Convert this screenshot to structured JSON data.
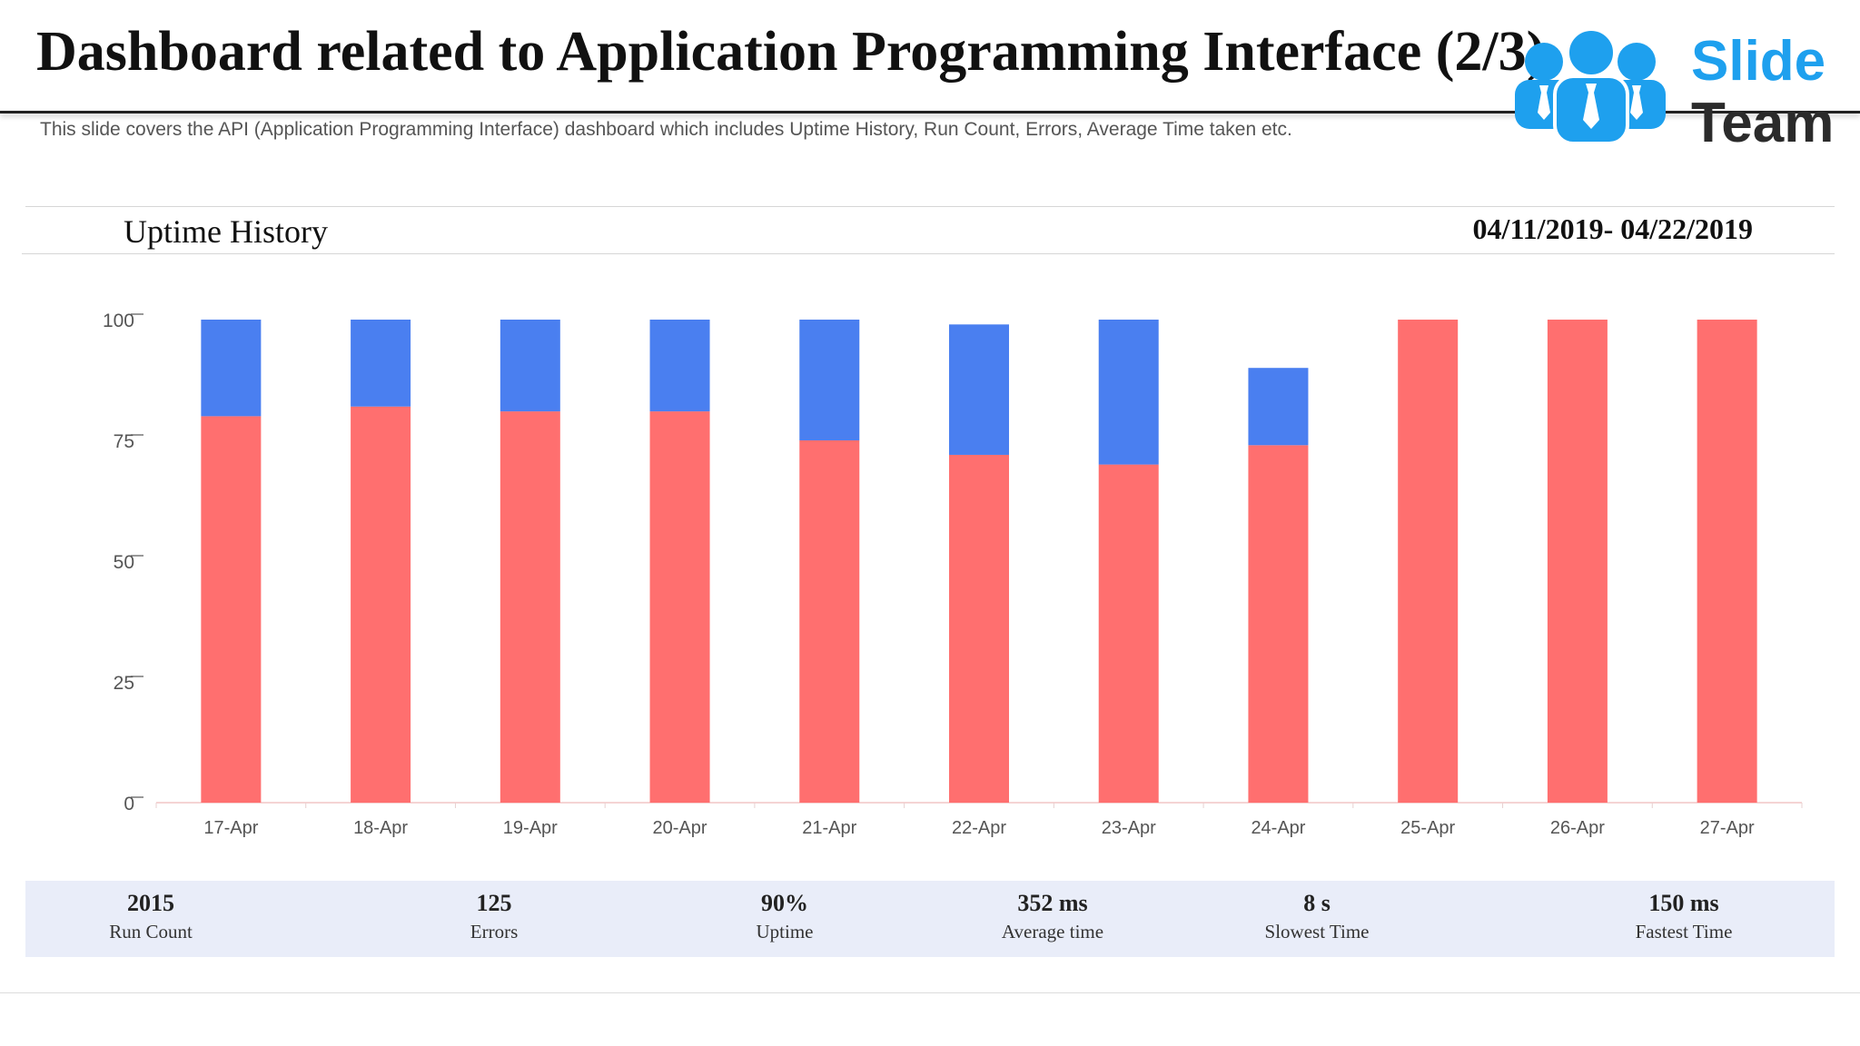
{
  "header": {
    "title": "Dashboard related to Application Programming Interface (2/3)",
    "subtitle": "This slide covers the API (Application Programming Interface) dashboard which includes Uptime History, Run Count, Errors, Average Time taken etc."
  },
  "logo": {
    "line1": "Slide",
    "line2": "Team"
  },
  "panel": {
    "title": "Uptime History",
    "date_range": "04/11/2019- 04/22/2019"
  },
  "chart_data": {
    "type": "bar",
    "stacked": true,
    "categories": [
      "17-Apr",
      "18-Apr",
      "19-Apr",
      "20-Apr",
      "21-Apr",
      "22-Apr",
      "23-Apr",
      "24-Apr",
      "25-Apr",
      "26-Apr",
      "27-Apr"
    ],
    "series": [
      {
        "color": "#ff6f6f",
        "values": [
          80,
          82,
          81,
          81,
          75,
          72,
          70,
          74,
          100,
          100,
          100
        ]
      },
      {
        "color": "#4a7ff0",
        "values": [
          20,
          18,
          19,
          19,
          25,
          27,
          30,
          16,
          0,
          0,
          0
        ]
      }
    ],
    "yticks": [
      0,
      25,
      50,
      75,
      100
    ],
    "ylim": [
      0,
      100
    ],
    "title": "Uptime History",
    "xlabel": "",
    "ylabel": "",
    "grid": false
  },
  "stats": [
    {
      "value": "2015",
      "label": "Run Count"
    },
    {
      "value": "125",
      "label": "Errors"
    },
    {
      "value": "90%",
      "label": "Uptime"
    },
    {
      "value": "352 ms",
      "label": "Average time"
    },
    {
      "value": "8 s",
      "label": "Slowest Time"
    },
    {
      "value": "150 ms",
      "label": "Fastest Time"
    }
  ],
  "colors": {
    "uptime": "#ff6f6f",
    "downtime": "#4a7ff0",
    "stats_bg": "#e9edf9",
    "logo_blue": "#1ea0ee"
  }
}
